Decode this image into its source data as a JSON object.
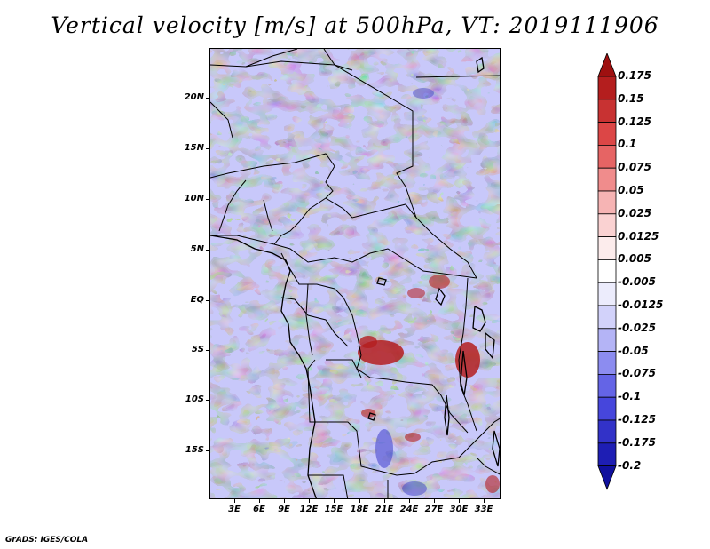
{
  "title": "Vertical velocity [m/s] at 500hPa, VT: 2019111906",
  "footer": "GrADS: IGES/COLA",
  "map": {
    "lat_labels": [
      "20N",
      "15N",
      "10N",
      "5N",
      "EQ",
      "5S",
      "10S",
      "15S"
    ],
    "lon_labels": [
      "3E",
      "6E",
      "9E",
      "12E",
      "15E",
      "18E",
      "21E",
      "24E",
      "27E",
      "30E",
      "33E"
    ],
    "field_colors": {
      "strong_neg": "#3c3cc8",
      "mid_neg": "#8c8cf0",
      "weak_neg": "#c8c8fa",
      "near_zero": "#f4f0f0",
      "weak_pos": "#f6c8c8",
      "mid_pos": "#f08c8c",
      "strong_pos": "#b41e1e"
    }
  },
  "colorbar": {
    "levels": [
      "0.175",
      "0.15",
      "0.125",
      "0.1",
      "0.075",
      "0.05",
      "0.025",
      "0.0125",
      "0.005",
      "-0.005",
      "-0.0125",
      "-0.025",
      "-0.05",
      "-0.075",
      "-0.1",
      "-0.125",
      "-0.175",
      "-0.2"
    ],
    "colors": [
      "#9e1010",
      "#b41e1e",
      "#c83232",
      "#dc4646",
      "#e66464",
      "#f08c8c",
      "#f6b4b4",
      "#fad2d2",
      "#fcecec",
      "#ffffff",
      "#ececfc",
      "#d2d2fa",
      "#b4b4f6",
      "#8c8cf0",
      "#6464e6",
      "#4646dc",
      "#3232c8",
      "#1e1eb4",
      "#10109e"
    ]
  }
}
